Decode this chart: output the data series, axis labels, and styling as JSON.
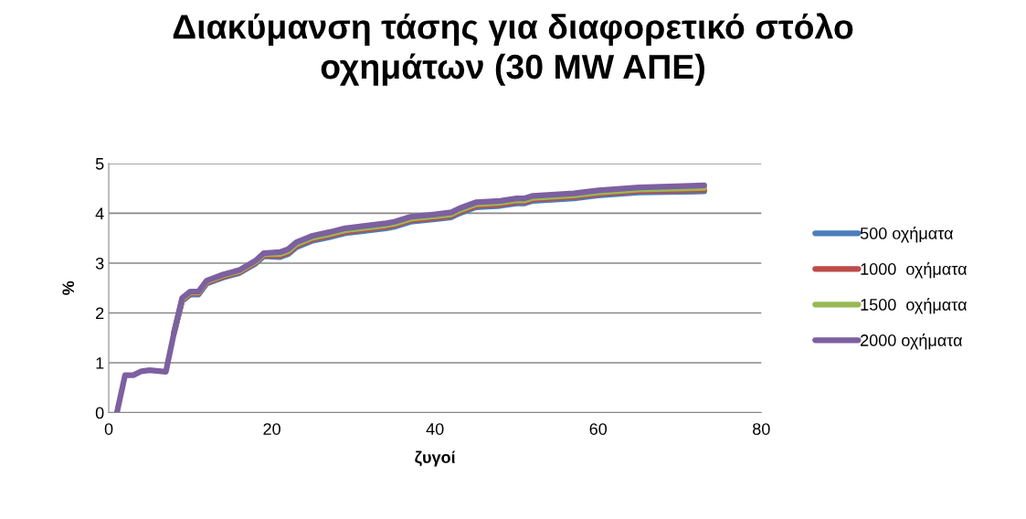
{
  "chart_data": {
    "type": "line",
    "title": "Διακύμανση τάσης για διαφορετικό στόλο οχημάτων (30 MW ΑΠΕ)",
    "xlabel": "ζυγοί",
    "ylabel": "%",
    "x": [
      1,
      2,
      3,
      4,
      5,
      7,
      8,
      9,
      10,
      11,
      12,
      14,
      16,
      18,
      19,
      21,
      22,
      23,
      25,
      27,
      29,
      31,
      34,
      35,
      37,
      40,
      42,
      43,
      45,
      48,
      50,
      51,
      52,
      57,
      60,
      65,
      73
    ],
    "xlim": [
      0,
      80
    ],
    "xticks": [
      0,
      20,
      40,
      60,
      80
    ],
    "ylim": [
      0,
      5
    ],
    "yticks": [
      0,
      1,
      2,
      3,
      4,
      5
    ],
    "grid": "y",
    "legend": "right",
    "marker": "none",
    "line_style": "solid",
    "series": [
      {
        "name": "500 οχήματα",
        "color": "#4a7ebb",
        "values": [
          null,
          null,
          null,
          null,
          null,
          null,
          1.6,
          2.24,
          2.37,
          2.37,
          2.59,
          2.71,
          2.8,
          2.99,
          3.14,
          3.12,
          3.18,
          3.32,
          3.45,
          3.52,
          3.6,
          3.64,
          3.7,
          3.73,
          3.83,
          3.88,
          3.92,
          4.0,
          4.12,
          4.15,
          4.2,
          4.2,
          4.25,
          4.3,
          4.36,
          4.42,
          4.44
        ]
      },
      {
        "name": "1000  οχήματα",
        "color": "#be4b48",
        "values": [
          null,
          null,
          null,
          null,
          null,
          null,
          1.6,
          2.26,
          2.39,
          2.39,
          2.61,
          2.73,
          2.82,
          3.01,
          3.16,
          3.15,
          3.21,
          3.35,
          3.48,
          3.55,
          3.63,
          3.67,
          3.73,
          3.76,
          3.86,
          3.91,
          3.95,
          4.03,
          4.15,
          4.18,
          4.23,
          4.23,
          4.28,
          4.33,
          4.39,
          4.45,
          4.47
        ]
      },
      {
        "name": "1500  οχήματα",
        "color": "#98b954",
        "values": [
          null,
          null,
          null,
          null,
          null,
          null,
          1.6,
          2.28,
          2.41,
          2.41,
          2.63,
          2.75,
          2.84,
          3.03,
          3.18,
          3.18,
          3.24,
          3.38,
          3.51,
          3.58,
          3.66,
          3.7,
          3.76,
          3.79,
          3.89,
          3.94,
          3.98,
          4.06,
          4.18,
          4.21,
          4.26,
          4.26,
          4.31,
          4.36,
          4.42,
          4.48,
          4.51
        ]
      },
      {
        "name": "2000 οχήματα",
        "color": "#7d60a0",
        "values": [
          0,
          0.75,
          0.75,
          0.83,
          0.85,
          0.82,
          1.6,
          2.3,
          2.43,
          2.43,
          2.65,
          2.77,
          2.86,
          3.05,
          3.2,
          3.22,
          3.28,
          3.42,
          3.55,
          3.62,
          3.7,
          3.74,
          3.8,
          3.83,
          3.93,
          3.98,
          4.02,
          4.1,
          4.22,
          4.25,
          4.3,
          4.3,
          4.35,
          4.4,
          4.46,
          4.52,
          4.56
        ]
      }
    ]
  }
}
